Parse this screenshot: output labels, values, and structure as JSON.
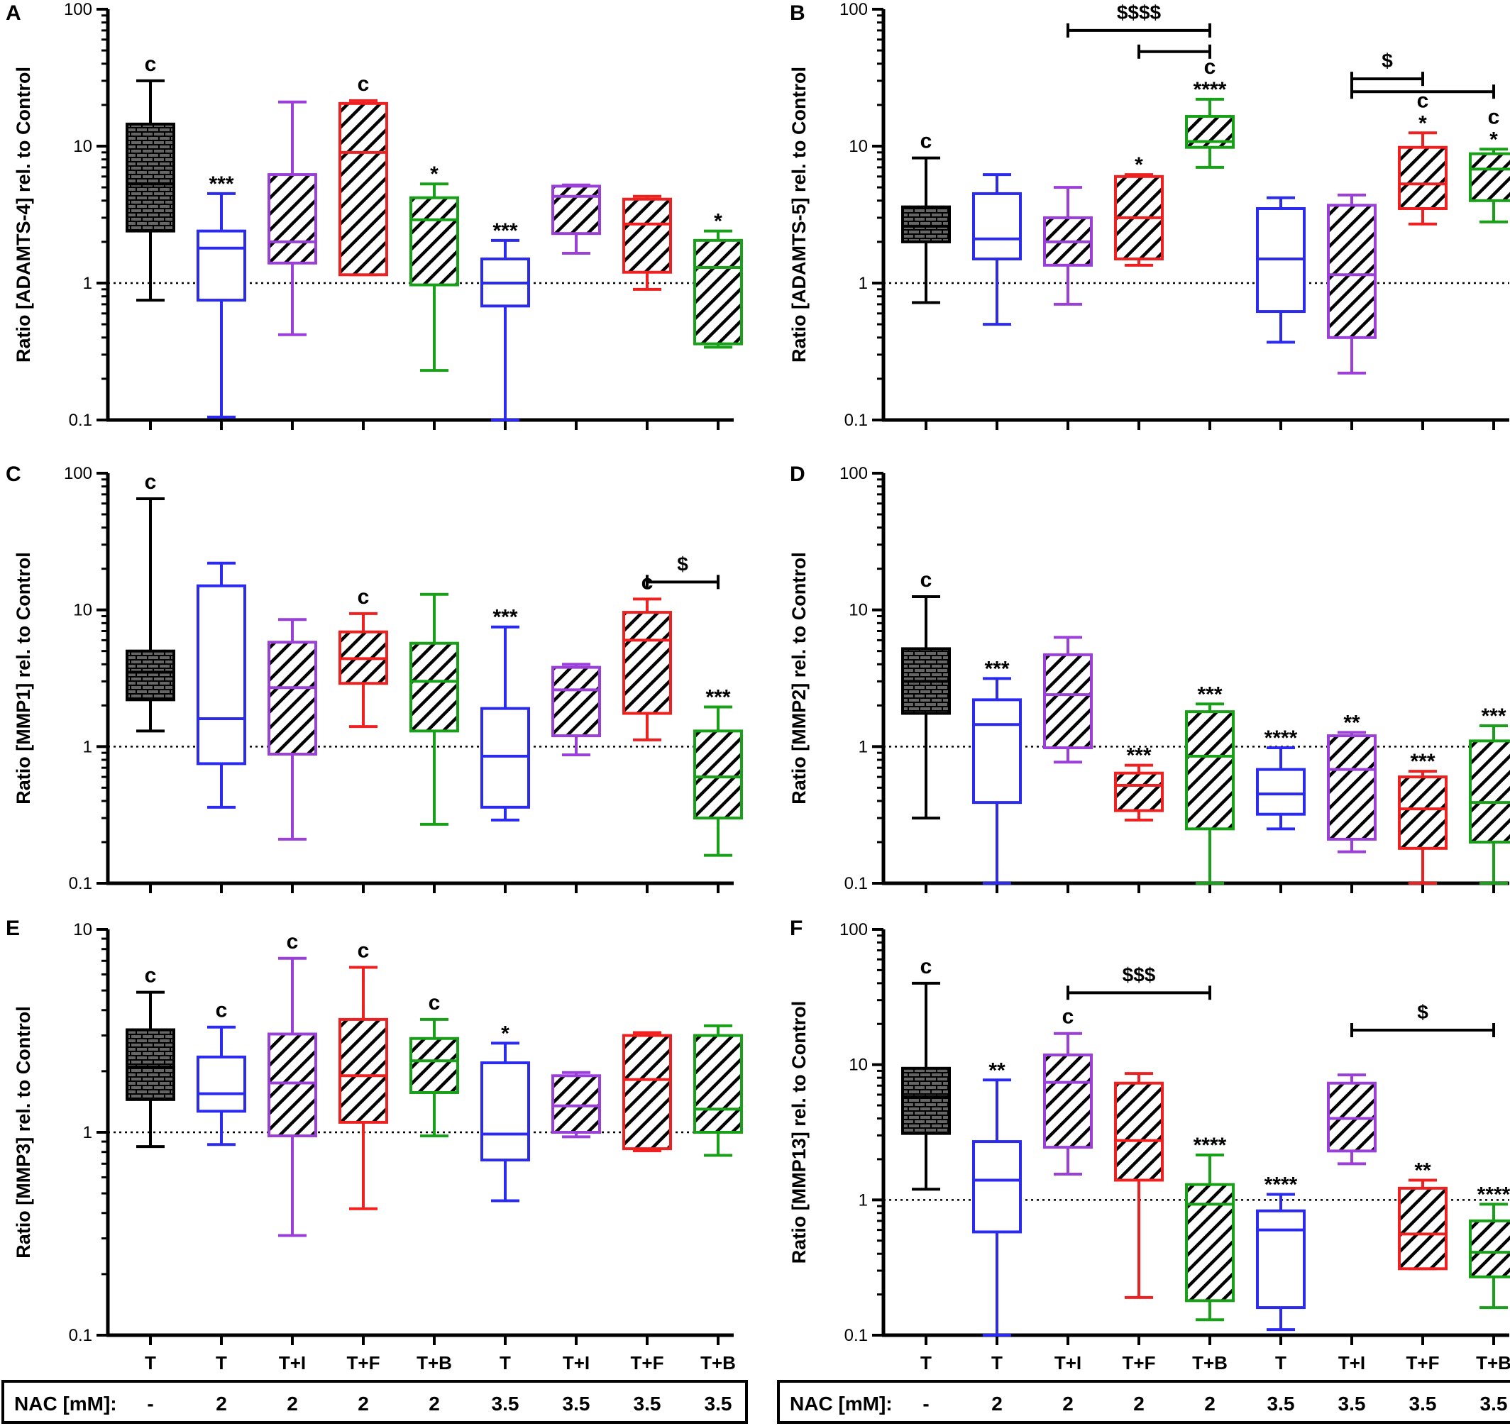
{
  "categories": [
    "T",
    "T",
    "T+I",
    "T+F",
    "T+B",
    "T",
    "T+I",
    "T+F",
    "T+B"
  ],
  "group_colors": [
    "#000000",
    "#2b2bf0",
    "#9b3fd9",
    "#ef2020",
    "#18a018",
    "#2b2bf0",
    "#9b3fd9",
    "#ef2020",
    "#18a018"
  ],
  "hatched": [
    false,
    false,
    true,
    true,
    true,
    false,
    true,
    true,
    true
  ],
  "nac": {
    "label": "NAC [mM]:",
    "values": [
      "-",
      "2",
      "2",
      "2",
      "2",
      "3.5",
      "3.5",
      "3.5",
      "3.5"
    ]
  },
  "chart_data": [
    {
      "panel": "A",
      "type": "box",
      "ylabel": "Ratio [ADAMTS-4] rel. to Control",
      "yscale": "log",
      "ylim": [
        0.1,
        100
      ],
      "yticks": [
        "0.1",
        "1",
        "10",
        "100"
      ],
      "reference_line": 1,
      "boxes": [
        {
          "min": 0.75,
          "q1": 2.4,
          "median": 5.3,
          "q3": 14.5,
          "max": 30,
          "label": "c"
        },
        {
          "min": 0.105,
          "q1": 0.75,
          "median": 1.8,
          "q3": 2.4,
          "max": 4.5,
          "label": "***"
        },
        {
          "min": 0.42,
          "q1": 1.4,
          "median": 2.0,
          "q3": 6.2,
          "max": 21,
          "label": ""
        },
        {
          "min": 1.15,
          "q1": 1.15,
          "median": 9.0,
          "q3": 20.5,
          "max": 21.5,
          "label": "c"
        },
        {
          "min": 0.23,
          "q1": 0.97,
          "median": 2.9,
          "q3": 4.2,
          "max": 5.3,
          "label": "*"
        },
        {
          "min": 0.1,
          "q1": 0.68,
          "median": 1.0,
          "q3": 1.5,
          "max": 2.05,
          "label": "***"
        },
        {
          "min": 1.65,
          "q1": 2.3,
          "median": 4.3,
          "q3": 5.1,
          "max": 5.2,
          "label": ""
        },
        {
          "min": 0.9,
          "q1": 1.2,
          "median": 2.7,
          "q3": 4.1,
          "max": 4.3,
          "label": ""
        },
        {
          "min": 0.34,
          "q1": 0.36,
          "median": 1.3,
          "q3": 2.05,
          "max": 2.4,
          "label": "*"
        }
      ],
      "brackets": []
    },
    {
      "panel": "B",
      "type": "box",
      "ylabel": "Ratio [ADAMTS-5] rel. to Control",
      "yscale": "log",
      "ylim": [
        0.1,
        100
      ],
      "yticks": [
        "0.1",
        "1",
        "10",
        "100"
      ],
      "reference_line": 1,
      "boxes": [
        {
          "min": 0.72,
          "q1": 2.0,
          "median": 2.6,
          "q3": 3.6,
          "max": 8.2,
          "label": "c"
        },
        {
          "min": 0.5,
          "q1": 1.5,
          "median": 2.1,
          "q3": 4.5,
          "max": 6.2,
          "label": ""
        },
        {
          "min": 0.7,
          "q1": 1.35,
          "median": 2.0,
          "q3": 3.0,
          "max": 5.0,
          "label": ""
        },
        {
          "min": 1.35,
          "q1": 1.5,
          "median": 3.0,
          "q3": 6.0,
          "max": 6.2,
          "label": "*"
        },
        {
          "min": 7.0,
          "q1": 9.8,
          "median": 10.8,
          "q3": 16.5,
          "max": 22,
          "label": "****\nc"
        },
        {
          "min": 0.37,
          "q1": 0.62,
          "median": 1.5,
          "q3": 3.5,
          "max": 4.2,
          "label": ""
        },
        {
          "min": 0.22,
          "q1": 0.4,
          "median": 1.15,
          "q3": 3.7,
          "max": 4.4,
          "label": ""
        },
        {
          "min": 2.7,
          "q1": 3.5,
          "median": 5.3,
          "q3": 9.8,
          "max": 12.5,
          "label": "*\nc"
        },
        {
          "min": 2.8,
          "q1": 4.0,
          "median": 6.8,
          "q3": 8.8,
          "max": 9.5,
          "label": "*\nc"
        }
      ],
      "brackets": [
        {
          "from": 2,
          "to": 4,
          "y": 70,
          "label": "$$$$"
        },
        {
          "from": 3,
          "to": 4,
          "y": 49,
          "label": ""
        },
        {
          "from": 6,
          "to": 7,
          "y": 31,
          "label": "$"
        },
        {
          "from": 6,
          "to": 8,
          "y": 25,
          "label": ""
        }
      ]
    },
    {
      "panel": "C",
      "type": "box",
      "ylabel": "Ratio [MMP1] rel. to Control",
      "yscale": "log",
      "ylim": [
        0.1,
        100
      ],
      "yticks": [
        "0.1",
        "1",
        "10",
        "100"
      ],
      "reference_line": 1,
      "boxes": [
        {
          "min": 1.3,
          "q1": 2.2,
          "median": 3.5,
          "q3": 5.0,
          "max": 65,
          "label": "c"
        },
        {
          "min": 0.36,
          "q1": 0.75,
          "median": 1.6,
          "q3": 15,
          "max": 22,
          "label": ""
        },
        {
          "min": 0.21,
          "q1": 0.88,
          "median": 2.7,
          "q3": 5.8,
          "max": 8.5,
          "label": ""
        },
        {
          "min": 1.4,
          "q1": 2.9,
          "median": 4.4,
          "q3": 6.9,
          "max": 9.4,
          "label": "c"
        },
        {
          "min": 0.27,
          "q1": 1.3,
          "median": 3.0,
          "q3": 5.7,
          "max": 13,
          "label": ""
        },
        {
          "min": 0.29,
          "q1": 0.36,
          "median": 0.85,
          "q3": 1.9,
          "max": 7.5,
          "label": "***"
        },
        {
          "min": 0.87,
          "q1": 1.2,
          "median": 2.6,
          "q3": 3.8,
          "max": 4.0,
          "label": ""
        },
        {
          "min": 1.12,
          "q1": 1.75,
          "median": 6.0,
          "q3": 9.6,
          "max": 12,
          "label": "c"
        },
        {
          "min": 0.16,
          "q1": 0.3,
          "median": 0.6,
          "q3": 1.3,
          "max": 1.95,
          "label": "***"
        }
      ],
      "brackets": [
        {
          "from": 7,
          "to": 8,
          "y": 16,
          "label": "$"
        }
      ]
    },
    {
      "panel": "D",
      "type": "box",
      "ylabel": "Ratio [MMP2] rel. to Control",
      "yscale": "log",
      "ylim": [
        0.1,
        100
      ],
      "yticks": [
        "0.1",
        "1",
        "10",
        "100"
      ],
      "reference_line": 1,
      "boxes": [
        {
          "min": 0.3,
          "q1": 1.75,
          "median": 3.0,
          "q3": 5.2,
          "max": 12.5,
          "label": "c"
        },
        {
          "min": 0.1,
          "q1": 0.39,
          "median": 1.45,
          "q3": 2.2,
          "max": 3.15,
          "label": "***"
        },
        {
          "min": 0.77,
          "q1": 0.98,
          "median": 2.4,
          "q3": 4.7,
          "max": 6.3,
          "label": ""
        },
        {
          "min": 0.29,
          "q1": 0.34,
          "median": 0.52,
          "q3": 0.64,
          "max": 0.73,
          "label": "***"
        },
        {
          "min": 0.1,
          "q1": 0.25,
          "median": 0.85,
          "q3": 1.8,
          "max": 2.05,
          "label": "***"
        },
        {
          "min": 0.25,
          "q1": 0.32,
          "median": 0.45,
          "q3": 0.68,
          "max": 0.98,
          "label": "****"
        },
        {
          "min": 0.17,
          "q1": 0.21,
          "median": 0.68,
          "q3": 1.2,
          "max": 1.27,
          "label": "**"
        },
        {
          "min": 0.1,
          "q1": 0.18,
          "median": 0.35,
          "q3": 0.6,
          "max": 0.66,
          "label": "***"
        },
        {
          "min": 0.1,
          "q1": 0.2,
          "median": 0.39,
          "q3": 1.1,
          "max": 1.42,
          "label": "***"
        }
      ],
      "brackets": []
    },
    {
      "panel": "E",
      "type": "box",
      "ylabel": "Ratio [MMP3] rel. to Control",
      "yscale": "log",
      "ylim": [
        0.1,
        10
      ],
      "yticks": [
        "0.1",
        "1",
        "10"
      ],
      "reference_line": 1,
      "boxes": [
        {
          "min": 0.85,
          "q1": 1.45,
          "median": 2.1,
          "q3": 3.2,
          "max": 4.9,
          "label": "c"
        },
        {
          "min": 0.87,
          "q1": 1.27,
          "median": 1.55,
          "q3": 2.35,
          "max": 3.3,
          "label": "c"
        },
        {
          "min": 0.31,
          "q1": 0.96,
          "median": 1.75,
          "q3": 3.05,
          "max": 7.2,
          "label": "c"
        },
        {
          "min": 0.42,
          "q1": 1.12,
          "median": 1.9,
          "q3": 3.6,
          "max": 6.5,
          "label": "c"
        },
        {
          "min": 0.96,
          "q1": 1.57,
          "median": 2.25,
          "q3": 2.9,
          "max": 3.6,
          "label": "c"
        },
        {
          "min": 0.46,
          "q1": 0.73,
          "median": 0.98,
          "q3": 2.2,
          "max": 2.75,
          "label": "*"
        },
        {
          "min": 0.95,
          "q1": 1.0,
          "median": 1.35,
          "q3": 1.9,
          "max": 1.97,
          "label": ""
        },
        {
          "min": 0.81,
          "q1": 0.83,
          "median": 1.82,
          "q3": 3.0,
          "max": 3.1,
          "label": ""
        },
        {
          "min": 0.77,
          "q1": 1.0,
          "median": 1.3,
          "q3": 3.0,
          "max": 3.35,
          "label": ""
        }
      ],
      "brackets": []
    },
    {
      "panel": "F",
      "type": "box",
      "ylabel": "Ratio [MMP13] rel. to Control",
      "yscale": "log",
      "ylim": [
        0.1,
        100
      ],
      "yticks": [
        "0.1",
        "1",
        "10",
        "100"
      ],
      "reference_line": 1,
      "boxes": [
        {
          "min": 1.2,
          "q1": 3.1,
          "median": 5.8,
          "q3": 9.4,
          "max": 40,
          "label": "c"
        },
        {
          "min": 0.1,
          "q1": 0.58,
          "median": 1.4,
          "q3": 2.7,
          "max": 7.7,
          "label": "**"
        },
        {
          "min": 1.55,
          "q1": 2.45,
          "median": 7.4,
          "q3": 11.8,
          "max": 17,
          "label": "c"
        },
        {
          "min": 0.19,
          "q1": 1.4,
          "median": 2.75,
          "q3": 7.3,
          "max": 8.6,
          "label": ""
        },
        {
          "min": 0.13,
          "q1": 0.18,
          "median": 0.93,
          "q3": 1.3,
          "max": 2.15,
          "label": "****"
        },
        {
          "min": 0.11,
          "q1": 0.16,
          "median": 0.6,
          "q3": 0.83,
          "max": 1.1,
          "label": "****"
        },
        {
          "min": 1.85,
          "q1": 2.3,
          "median": 4.0,
          "q3": 7.3,
          "max": 8.4,
          "label": ""
        },
        {
          "min": 0.31,
          "q1": 0.31,
          "median": 0.56,
          "q3": 1.22,
          "max": 1.4,
          "label": "**"
        },
        {
          "min": 0.16,
          "q1": 0.27,
          "median": 0.41,
          "q3": 0.7,
          "max": 0.93,
          "label": "****"
        }
      ],
      "brackets": [
        {
          "from": 2,
          "to": 4,
          "y": 34,
          "label": "$$$"
        },
        {
          "from": 6,
          "to": 8,
          "y": 18,
          "label": "$"
        }
      ]
    }
  ]
}
